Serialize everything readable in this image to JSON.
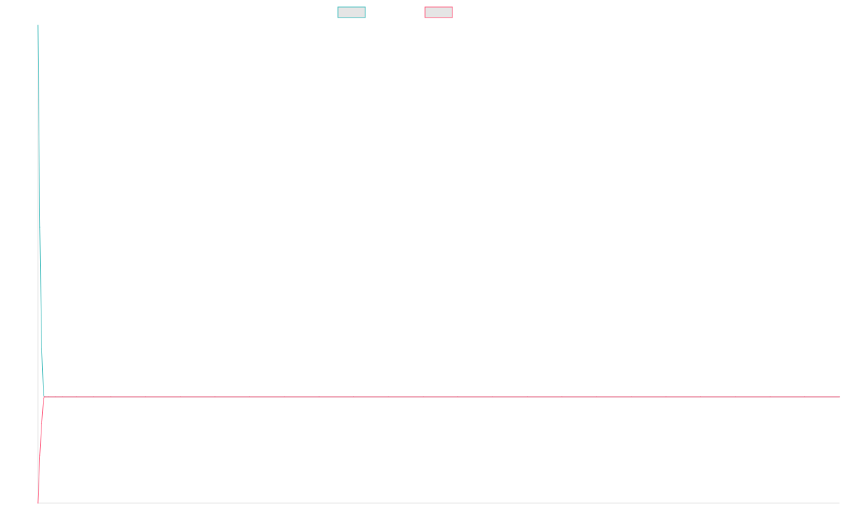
{
  "chart_data": {
    "type": "line",
    "title": "",
    "xlabel": "",
    "ylabel": "",
    "grid": false,
    "legend_position": "top-center",
    "x": [
      0,
      1,
      2,
      3,
      4,
      5,
      10,
      20,
      30,
      50,
      75,
      100,
      150,
      200,
      250,
      300,
      350,
      400,
      450,
      500,
      550,
      600,
      650,
      700,
      750,
      800,
      850,
      900,
      950,
      1000,
      1050,
      1100,
      1150
    ],
    "ylim": [
      -1,
      3.5
    ],
    "series": [
      {
        "name": "",
        "color": "#4BC0C0",
        "fill_color": "#E5E5E5",
        "values": [
          3.5,
          1.6,
          0.45,
          0.02,
          0.0,
          0.0,
          0.0,
          0.0,
          0.0,
          0.0,
          0.0,
          0.0,
          0.0,
          0.0,
          0.0,
          0.0,
          0.0,
          0.0,
          0.0,
          0.0,
          0.0,
          0.0,
          0.0,
          0.0,
          0.0,
          0.0,
          0.0,
          0.0,
          0.0,
          0.0,
          0.0,
          0.0,
          0.0
        ]
      },
      {
        "name": "",
        "color": "#FF6384",
        "fill_color": "#E5E5E5",
        "values": [
          -1.0,
          -0.55,
          -0.25,
          -0.02,
          0.0,
          0.0,
          0.0,
          0.0,
          0.0,
          0.0,
          0.0,
          0.0,
          0.0,
          0.0,
          0.0,
          0.0,
          0.0,
          0.0,
          0.0,
          0.0,
          0.0,
          0.0,
          0.0,
          0.0,
          0.0,
          0.0,
          0.0,
          0.0,
          0.0,
          0.0,
          0.0,
          0.0,
          0.0
        ]
      }
    ],
    "axis_color": "#E6E6E6"
  }
}
